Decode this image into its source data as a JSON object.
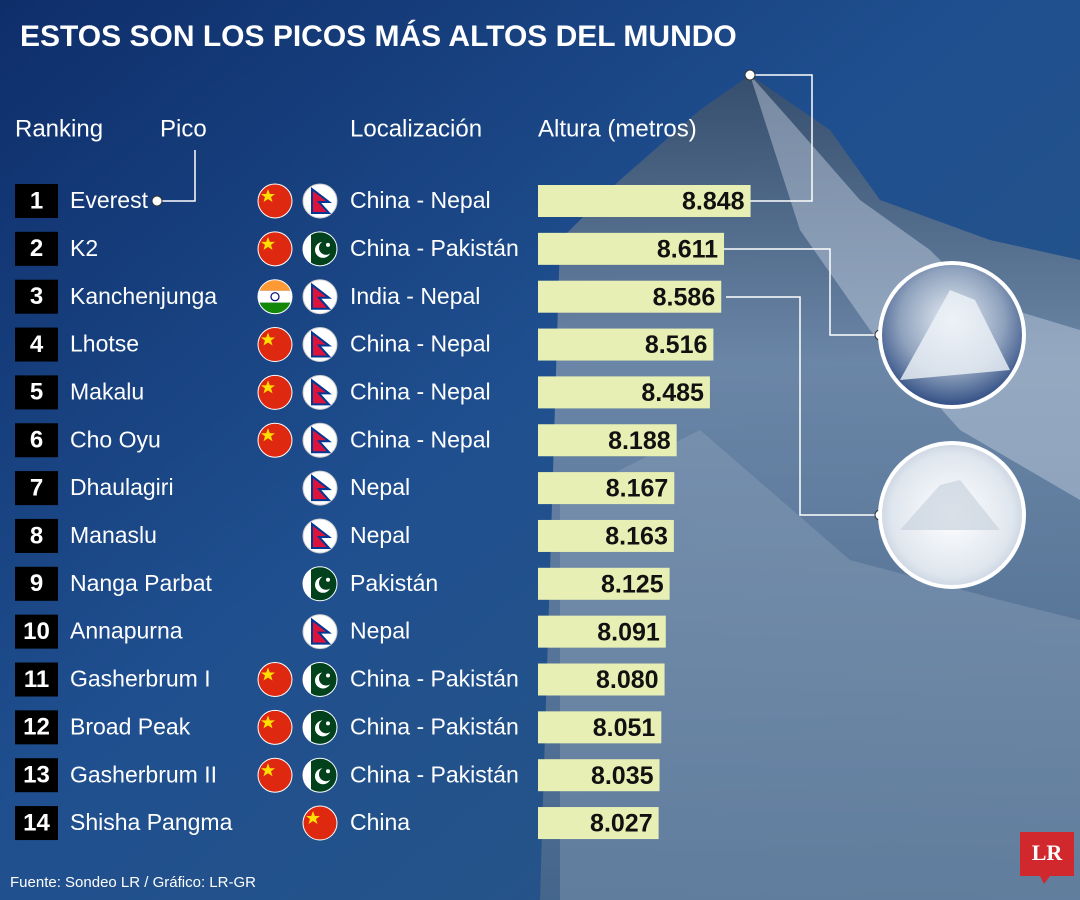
{
  "title": "ESTOS SON LOS PICOS MÁS ALTOS DEL MUNDO",
  "headers": {
    "ranking": "Ranking",
    "peak": "Pico",
    "location": "Localización",
    "height": "Altura (metros)"
  },
  "chart_data": {
    "type": "bar",
    "orientation": "horizontal",
    "ranks": [
      1,
      2,
      3,
      4,
      5,
      6,
      7,
      8,
      9,
      10,
      11,
      12,
      13,
      14
    ],
    "categories": [
      "Everest",
      "K2",
      "Kanchenjunga",
      "Lhotse",
      "Makalu",
      "Cho Oyu",
      "Dhaulagiri",
      "Manaslu",
      "Nanga Parbat",
      "Annapurna",
      "Gasherbrum I",
      "Broad Peak",
      "Gasherbrum II",
      "Shisha Pangma"
    ],
    "locations": [
      "China - Nepal",
      "China - Pakistán",
      "India - Nepal",
      "China - Nepal",
      "China - Nepal",
      "China - Nepal",
      "Nepal",
      "Nepal",
      "Pakistán",
      "Nepal",
      "China - Pakistán",
      "China - Pakistán",
      "China - Pakistán",
      "China"
    ],
    "values": [
      8848,
      8611,
      8586,
      8516,
      8485,
      8188,
      8167,
      8163,
      8125,
      8091,
      8080,
      8051,
      8035,
      8027
    ],
    "value_labels": [
      "8.848",
      "8.611",
      "8.586",
      "8.516",
      "8.485",
      "8.188",
      "8.167",
      "8.163",
      "8.125",
      "8.091",
      "8.080",
      "8.051",
      "8.035",
      "8.027"
    ],
    "color": "#e8efb4",
    "xlim": [
      6950,
      8900
    ]
  },
  "source": "Fuente: Sondeo LR / Gráfico: LR-GR",
  "logo": "LR"
}
